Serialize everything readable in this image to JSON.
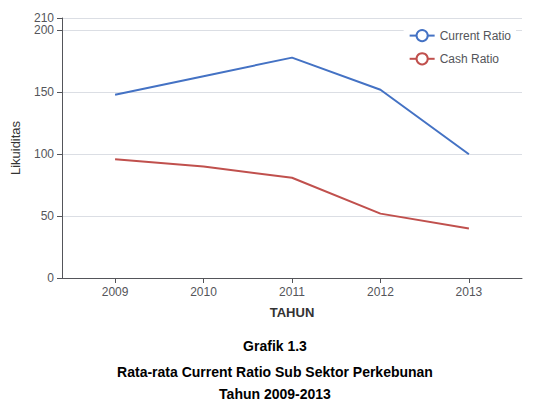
{
  "chart_data": {
    "type": "line",
    "title": "Grafik 1.3",
    "subtitle": [
      "Rata-rata Current Ratio Sub Sektor Perkebunan",
      "Tahun 2009-2013"
    ],
    "x": [
      2009,
      2010,
      2011,
      2012,
      2013
    ],
    "series": [
      {
        "name": "Current Ratio",
        "color": "#4472C4",
        "values": [
          148,
          163,
          178,
          152,
          100
        ]
      },
      {
        "name": "Cash Ratio",
        "color": "#C0504D",
        "values": [
          96,
          90,
          81,
          52,
          40
        ]
      }
    ],
    "xlabel": "TAHUN",
    "ylabel": "Likuiditas",
    "xlim": [
      2008.4,
      2013.6
    ],
    "xticks": [
      2009,
      2010,
      2011,
      2012,
      2013
    ],
    "ylim": [
      0,
      210
    ],
    "yticks": [
      0,
      50,
      100,
      150,
      200
    ],
    "grid": true,
    "legend": "upper right"
  }
}
